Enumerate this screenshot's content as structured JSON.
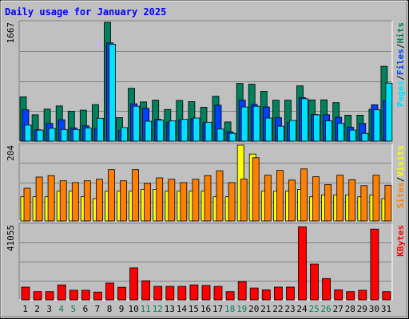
{
  "chart_data": {
    "type": "bar",
    "title": "Daily usage for January 2025",
    "categories": [
      "1",
      "2",
      "3",
      "4",
      "5",
      "6",
      "7",
      "8",
      "9",
      "10",
      "11",
      "12",
      "13",
      "14",
      "15",
      "16",
      "17",
      "18",
      "19",
      "20",
      "21",
      "22",
      "23",
      "24",
      "25",
      "26",
      "27",
      "28",
      "29",
      "30",
      "31"
    ],
    "weekend_days": [
      4,
      5,
      11,
      12,
      18,
      19,
      25,
      26
    ],
    "colors": {
      "hits": "#00805c",
      "files": "#0040ff",
      "pages": "#00e0ff",
      "visits": "#ffff00",
      "sites": "#ff8000",
      "kbytes": "#ff0000",
      "weekday_label": "#000000",
      "weekend_label": "#00805c",
      "title": "#0000ff"
    },
    "panels": [
      {
        "id": "hits",
        "max_label": "1667",
        "ymax": 1667,
        "legend": [
          {
            "text": "Pages",
            "color": "#00e0ff"
          },
          {
            "text": "/",
            "color": "#000000"
          },
          {
            "text": "Files",
            "color": "#0040ff"
          },
          {
            "text": "/",
            "color": "#000000"
          },
          {
            "text": "Hits",
            "color": "#00805c"
          }
        ],
        "series": [
          {
            "name": "Hits",
            "color": "#00805c",
            "values": [
              622,
              370,
              450,
              495,
              420,
              435,
              512,
              1667,
              330,
              742,
              550,
              575,
              445,
              572,
              555,
              475,
              630,
              270,
              810,
              800,
              700,
              575,
              575,
              775,
              580,
              580,
              540,
              365,
              365,
              448,
              1050
            ]
          },
          {
            "name": "Files",
            "color": "#0040ff",
            "values": [
              440,
              160,
              250,
              300,
              185,
              215,
              180,
              1380,
              150,
              525,
              460,
              305,
              265,
              300,
              315,
              260,
              505,
              130,
              575,
              515,
              480,
              330,
              260,
              610,
              375,
              370,
              335,
              195,
              250,
              510,
              570
            ]
          },
          {
            "name": "Pages",
            "color": "#00e0ff",
            "values": [
              225,
              155,
              180,
              165,
              165,
              185,
              320,
              1360,
              190,
              490,
              280,
              295,
              285,
              305,
              325,
              265,
              170,
              110,
              480,
              490,
              325,
              210,
              290,
              595,
              370,
              285,
              250,
              155,
              110,
              440,
              815
            ]
          }
        ]
      },
      {
        "id": "visits",
        "max_label": "204",
        "ymax": 204,
        "legend": [
          {
            "text": "Sites",
            "color": "#ff8000"
          },
          {
            "text": "/",
            "color": "#000000"
          },
          {
            "text": "Visits",
            "color": "#ffff00"
          }
        ],
        "series": [
          {
            "name": "Visits",
            "color": "#ffff00",
            "values": [
              65,
              65,
              65,
              80,
              80,
              65,
              60,
              80,
              80,
              80,
              85,
              85,
              80,
              80,
              80,
              80,
              65,
              65,
              204,
              180,
              80,
              80,
              80,
              85,
              65,
              70,
              70,
              70,
              65,
              70,
              60
            ]
          },
          {
            "name": "Sites",
            "color": "#ff8000",
            "values": [
              88,
              118,
              122,
              108,
              103,
              108,
              112,
              138,
              108,
              138,
              101,
              116,
              112,
              103,
              112,
              122,
              135,
              103,
              113,
              170,
              123,
              136,
              110,
              140,
              119,
              98,
              123,
              111,
              95,
              123,
              96
            ]
          }
        ]
      },
      {
        "id": "kbytes",
        "max_label": "41055",
        "ymax": 41055,
        "legend": [
          {
            "text": "KBytes",
            "color": "#ff0000"
          }
        ],
        "series": [
          {
            "name": "KBytes",
            "color": "#ff0000",
            "values": [
              7000,
              4500,
              4500,
              8200,
              5300,
              5300,
              4300,
              9200,
              6900,
              17500,
              10500,
              7400,
              7400,
              7400,
              8200,
              7900,
              7400,
              4500,
              10000,
              6500,
              5500,
              7000,
              7000,
              40000,
              19600,
              11700,
              5500,
              4500,
              5300,
              38800,
              4500
            ]
          }
        ]
      }
    ]
  }
}
